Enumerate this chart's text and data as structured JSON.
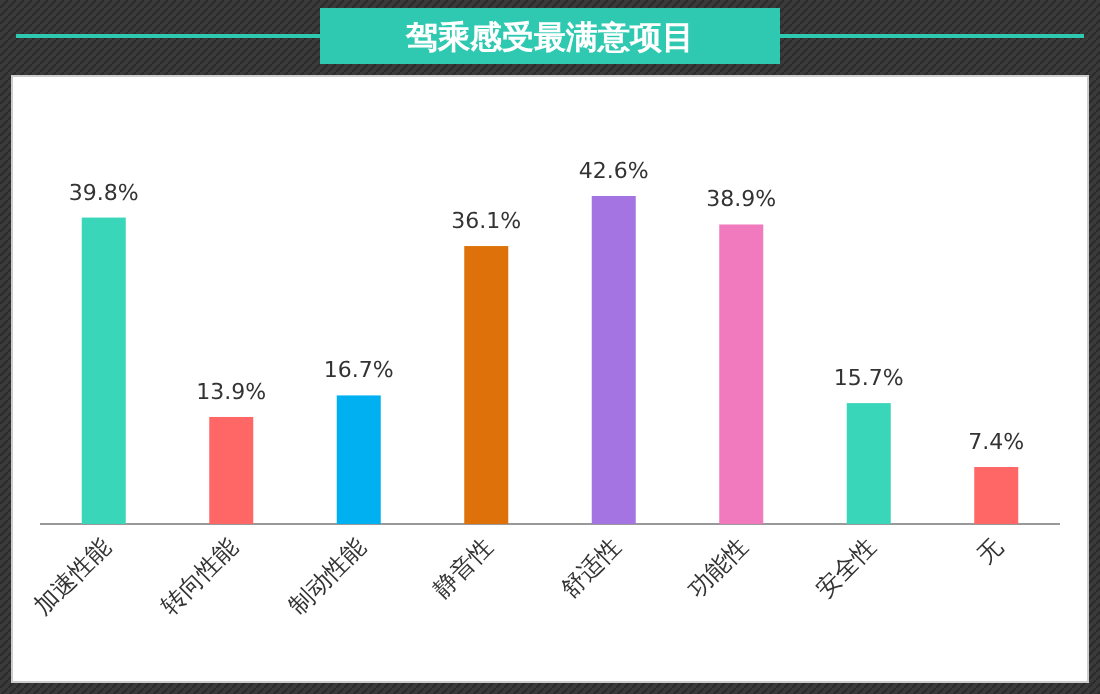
{
  "chart_data": {
    "type": "bar",
    "title": "驾乘感受最满意项目",
    "categories": [
      "加速性能",
      "转向性能",
      "制动性能",
      "静音性",
      "舒适性",
      "功能性",
      "安全性",
      "无"
    ],
    "values": [
      39.8,
      13.9,
      16.7,
      36.1,
      42.6,
      38.9,
      15.7,
      7.4
    ],
    "colors": [
      "#3ad6b9",
      "#ff6766",
      "#00b0f0",
      "#de7109",
      "#a374e2",
      "#f07abd",
      "#3ad6b9",
      "#ff6766"
    ],
    "value_labels": [
      "39.8%",
      "13.9%",
      "16.7%",
      "36.1%",
      "42.6%",
      "38.9%",
      "15.7%",
      "7.4%"
    ]
  }
}
